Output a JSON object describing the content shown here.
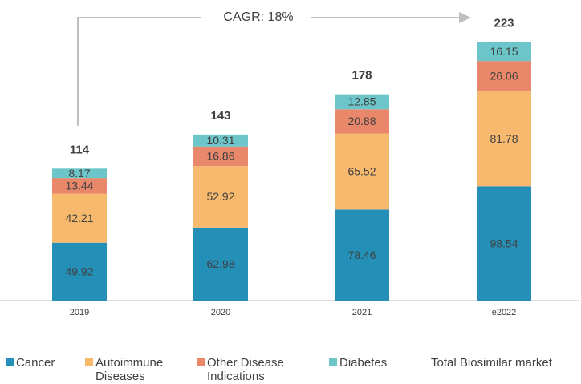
{
  "chart_data": {
    "type": "stacked-bar",
    "annotation": "CAGR: 18%",
    "categories": [
      "2019",
      "2020",
      "2021",
      "e2022"
    ],
    "series": [
      {
        "name": "Cancer",
        "color": "#2490b8",
        "values": [
          49.92,
          62.98,
          78.46,
          98.54
        ]
      },
      {
        "name": "Autoimmune Diseases",
        "color": "#f7b96e",
        "values": [
          42.21,
          52.92,
          65.52,
          81.78
        ]
      },
      {
        "name": "Other Disease Indications",
        "color": "#e8876a",
        "values": [
          13.44,
          16.86,
          20.88,
          26.06
        ]
      },
      {
        "name": "Diabetes",
        "color": "#6cc5c8",
        "values": [
          8.17,
          10.31,
          12.85,
          16.15
        ]
      }
    ],
    "totals": {
      "name": "Total Biosimilar market",
      "values": [
        114,
        143,
        178,
        223
      ]
    },
    "ylim": [
      0,
      250
    ]
  }
}
